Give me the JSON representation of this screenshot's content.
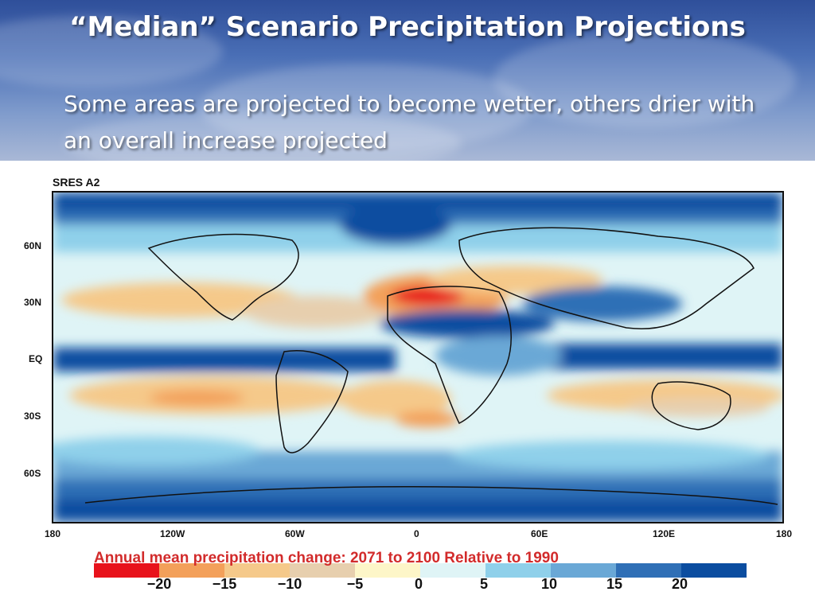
{
  "slide": {
    "title": "“Median” Scenario Precipitation Projections",
    "subtitle": "Some areas are projected to become wetter, others drier with an overall increase projected"
  },
  "map": {
    "scenario_label": "SRES A2",
    "lat_labels": [
      "60N",
      "30N",
      "EQ",
      "30S",
      "60S"
    ],
    "lon_labels": [
      "180",
      "120W",
      "60W",
      "0",
      "60E",
      "120E",
      "180"
    ]
  },
  "legend": {
    "caption": "Annual mean precipitation change:  2071 to 2100 Relative to 1990",
    "tick_labels": [
      "−20",
      "−15",
      "−10",
      "−5",
      "0",
      "5",
      "10",
      "15",
      "20"
    ],
    "colors": [
      "#e8121b",
      "#f3a05a",
      "#f5c98a",
      "#e7cfae",
      "#fdf6c8",
      "#dff4f6",
      "#8fd0ea",
      "#6aa8d6",
      "#2f6fb6",
      "#0b4da0"
    ]
  }
}
